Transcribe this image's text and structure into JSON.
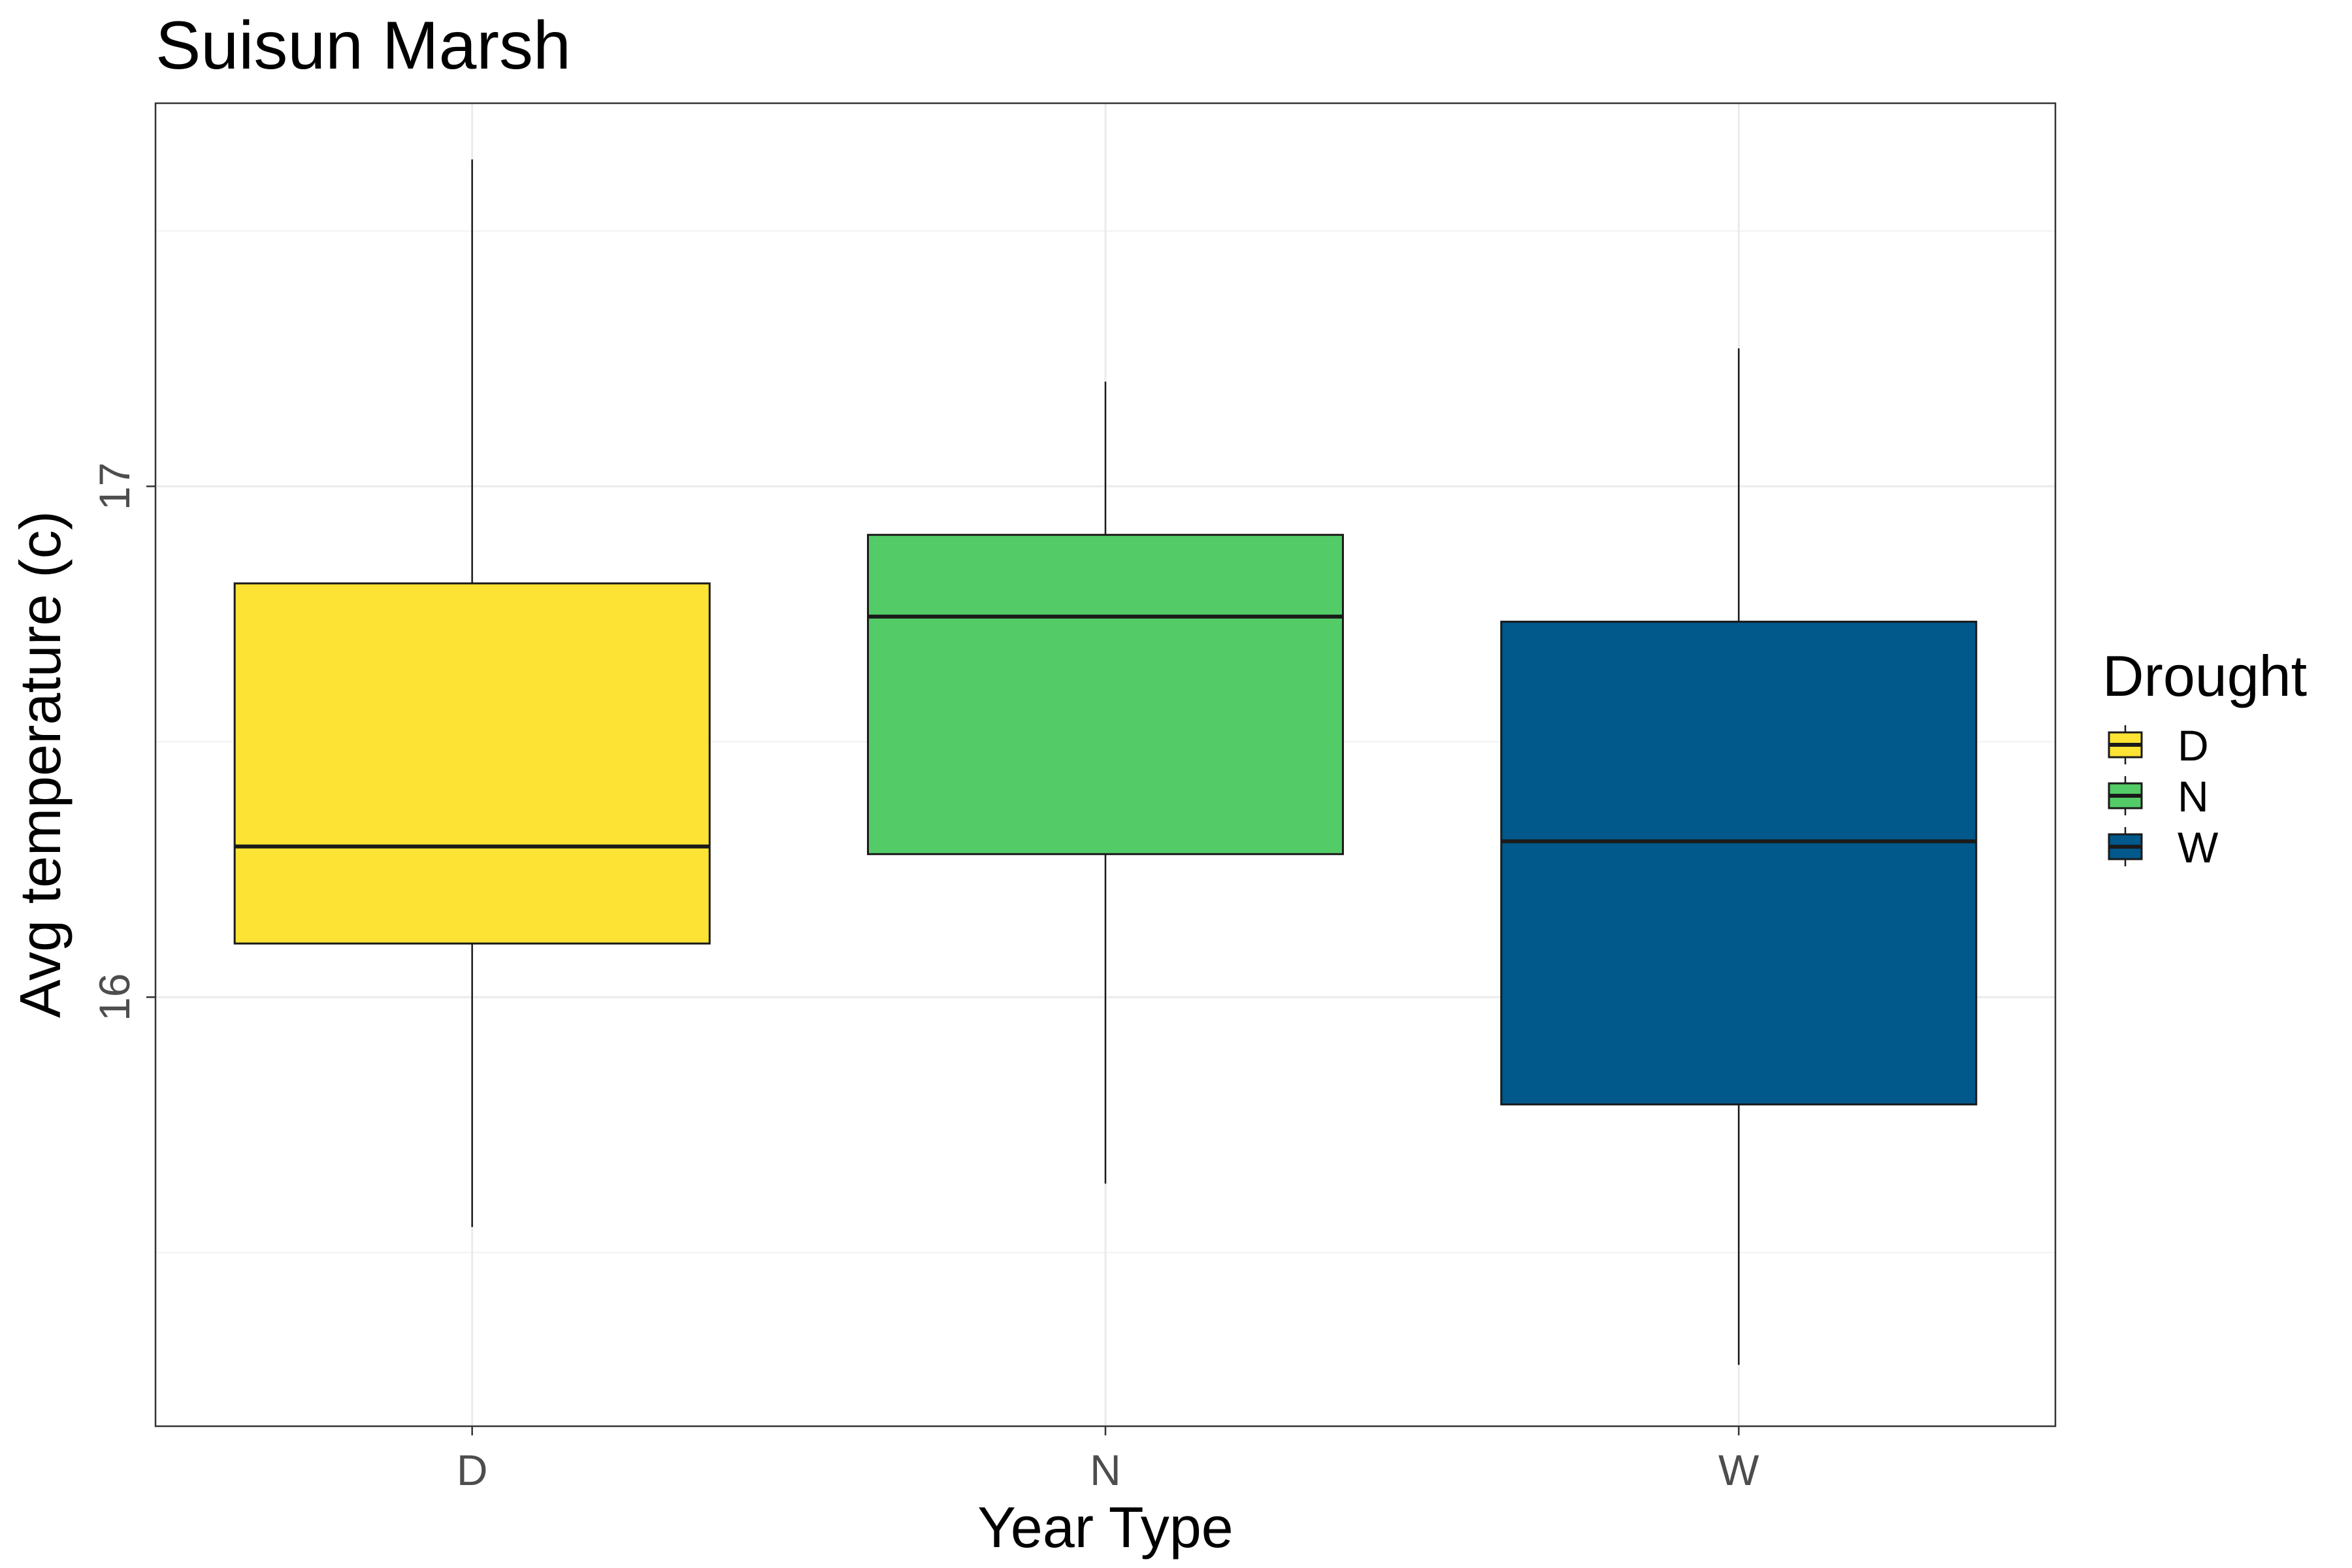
{
  "chart_data": {
    "type": "boxplot",
    "title": "Suisun Marsh",
    "xlabel": "Year Type",
    "ylabel": "Avg temperature (c)",
    "categories": [
      "D",
      "N",
      "W"
    ],
    "y_ticks": [
      16,
      17
    ],
    "y_tick_labels": [
      "16",
      "17"
    ],
    "ylim": [
      15.16,
      17.75
    ],
    "grid": true,
    "legend": {
      "title": "Drought",
      "position": "right",
      "entries": [
        "D",
        "N",
        "W"
      ]
    },
    "boxes": [
      {
        "category": "D",
        "min": 15.55,
        "q1": 16.105,
        "median": 16.295,
        "q3": 16.81,
        "max": 17.64,
        "color": "#FDE333"
      },
      {
        "category": "N",
        "min": 15.635,
        "q1": 16.28,
        "median": 16.745,
        "q3": 16.905,
        "max": 17.205,
        "color": "#53CC67"
      },
      {
        "category": "W",
        "min": 15.28,
        "q1": 15.79,
        "median": 16.305,
        "q3": 16.735,
        "max": 17.27,
        "color": "#00588B"
      }
    ]
  }
}
